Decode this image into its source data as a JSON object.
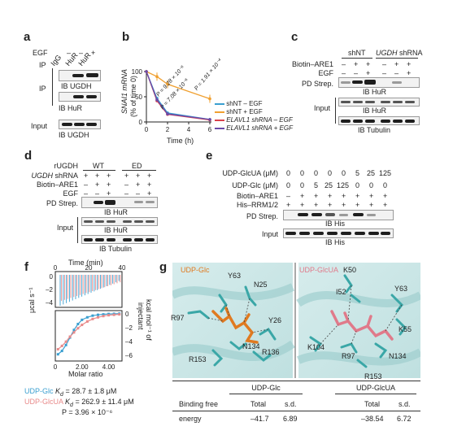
{
  "panels": {
    "a": {
      "label": "a",
      "egf_row": {
        "label": "EGF",
        "values": [
          "–",
          "–",
          "+"
        ]
      },
      "ip_row": {
        "label": "IP",
        "values": [
          "IgG",
          "HuR",
          "HuR"
        ]
      },
      "ip_blot1": "IB UGDH",
      "ip_blot2": "IB HuR",
      "ip_side": "IP",
      "input_label": "Input",
      "input_blot": "IB UGDH"
    },
    "b": {
      "label": "b",
      "ylabel_line1": "SNAI1 mRNA",
      "ylabel_line2": "(% of time 0)",
      "xlabel": "Time (h)",
      "p1": "P = 9.28 × 10⁻⁶",
      "p2": "P = 7.08 × 10⁻⁶",
      "p3": "P = 1.91 × 10⁻⁴"
    },
    "c": {
      "label": "c",
      "shNT": "shNT",
      "ugdh_sh": "UGDH",
      "shRNA": " shRNA",
      "biotin_row": {
        "label": "Biotin–ARE1",
        "values": [
          "–",
          "+",
          "+",
          "–",
          "+",
          "+"
        ]
      },
      "egf_row": {
        "label": "EGF",
        "values": [
          "–",
          "–",
          "+",
          "–",
          "–",
          "+"
        ]
      },
      "pd_label": "PD Strep.",
      "ib1": "IB HuR",
      "input_label": "Input",
      "ib2": "IB HuR",
      "ib3": "IB Tubulin"
    },
    "d": {
      "label": "d",
      "rugdh_label": "rUGDH",
      "wt": "WT",
      "ed": "ED",
      "shrna_row": {
        "label_it": "UGDH",
        "label": " shRNA",
        "values": [
          "+",
          "+",
          "+",
          "+",
          "+",
          "+"
        ]
      },
      "biotin_row": {
        "label": "Biotin–ARE1",
        "values": [
          "–",
          "+",
          "+",
          "–",
          "+",
          "+"
        ]
      },
      "egf_row": {
        "label": "EGF",
        "values": [
          "–",
          "–",
          "+",
          "–",
          "–",
          "+"
        ]
      },
      "pd_label": "PD Strep.",
      "ib1": "IB HuR",
      "input_label": "Input",
      "ib2": "IB HuR",
      "ib3": "IB Tubulin"
    },
    "e": {
      "label": "e",
      "glcua_row": {
        "label": "UDP-GlcUA (μM)",
        "values": [
          "0",
          "0",
          "0",
          "0",
          "0",
          "5",
          "25",
          "125"
        ]
      },
      "glc_row": {
        "label": "UDP-Glc (μM)",
        "values": [
          "0",
          "0",
          "5",
          "25",
          "125",
          "0",
          "0",
          "0"
        ]
      },
      "biotin_row": {
        "label": "Biotin–ARE1",
        "values": [
          "–",
          "+",
          "+",
          "+",
          "+",
          "+",
          "+",
          "+"
        ]
      },
      "his_row": {
        "label": "His–RRM1/2",
        "values": [
          "+",
          "+",
          "+",
          "+",
          "+",
          "+",
          "+",
          "+"
        ]
      },
      "pd_label": "PD Strep.",
      "ib1": "IB His",
      "input_label": "Input",
      "ib2": "IB His"
    },
    "f": {
      "label": "f",
      "top_xlabel": "Time (min)",
      "top_ticks": [
        "0",
        "20",
        "40"
      ],
      "left_ylabel": "μcal s⁻¹",
      "left_ticks": [
        "0",
        "–2",
        "–4"
      ],
      "right_ylabel_line1": "kcal mol⁻¹ of",
      "right_ylabel_line2": "injectant",
      "right_ticks": [
        "0",
        "–2",
        "–4",
        "–6"
      ],
      "bottom_ticks": [
        "0",
        "2.00",
        "4.00"
      ],
      "xlabel": "Molar ratio",
      "legend1_name": "UDP-Glc",
      "legend1_rest": " = 28.7 ± 1.8 μM",
      "legend2_name": "UDP-GlcUA",
      "legend2_rest": " = 262.9 ± 11.4 μM",
      "kd": "K",
      "kd_sub": "d",
      "pval": "P = 3.96 × 10⁻⁶"
    },
    "g": {
      "label": "g",
      "left_title": "UDP-Glc",
      "right_title": "UDP-GlcUA",
      "left_residues": [
        "Y63",
        "N25",
        "R97",
        "Y26",
        "N134",
        "R153",
        "R136"
      ],
      "right_residues": [
        "K50",
        "I52",
        "Y63",
        "K55",
        "K104",
        "R97",
        "N134",
        "R153"
      ],
      "table": {
        "col_glc": "UDP-Glc",
        "col_glcua": "UDP-GlcUA",
        "row_label_1": "Binding free",
        "row_label_2": "energy",
        "total": "Total",
        "sd": "s.d.",
        "glc_total": "–41.7",
        "glc_sd": "6.89",
        "glcua_total": "–38.54",
        "glcua_sd": "6.72"
      }
    }
  },
  "chart_data": [
    {
      "type": "line",
      "panel": "b",
      "x": [
        0,
        1,
        2,
        6
      ],
      "series": [
        {
          "name": "shNT – EGF",
          "values": [
            100,
            47,
            18,
            5
          ],
          "color": "#3a9fd0"
        },
        {
          "name": "shNT + EGF",
          "values": [
            100,
            90,
            75,
            46
          ],
          "color": "#f0a030"
        },
        {
          "name": "ELAVL1 shRNA – EGF",
          "values": [
            100,
            42,
            15,
            4
          ],
          "color": "#d8404a"
        },
        {
          "name": "ELAVL1 shRNA + EGF",
          "values": [
            100,
            44,
            16,
            5
          ],
          "color": "#6a4aa8"
        }
      ],
      "xlabel": "Time (h)",
      "ylabel": "SNAI1 mRNA (% of time 0)",
      "xticks": [
        0,
        2,
        4,
        6
      ],
      "yticks": [
        0,
        50,
        100
      ],
      "xlim": [
        0,
        6
      ],
      "ylim": [
        0,
        100
      ]
    },
    {
      "type": "scatter",
      "panel": "f",
      "x": [
        0.2,
        0.5,
        0.8,
        1.1,
        1.4,
        1.7,
        2.0,
        2.4,
        2.8,
        3.2,
        3.6,
        4.0,
        4.4,
        4.8
      ],
      "series": [
        {
          "name": "UDP-Glc",
          "values": [
            -5.2,
            -4.8,
            -4.1,
            -3.2,
            -2.3,
            -1.6,
            -1.1,
            -0.8,
            -0.6,
            -0.5,
            -0.45,
            -0.4,
            -0.38,
            -0.36
          ],
          "color": "#3a9fd0"
        },
        {
          "name": "UDP-GlcUA",
          "values": [
            -4.6,
            -4.2,
            -3.7,
            -3.1,
            -2.6,
            -2.1,
            -1.7,
            -1.3,
            -1.0,
            -0.8,
            -0.65,
            -0.55,
            -0.5,
            -0.45
          ],
          "color": "#e88a8a"
        }
      ],
      "xlabel": "Molar ratio",
      "ylabel": "kcal mol⁻¹ of injectant",
      "xlim": [
        0,
        5
      ],
      "ylim": [
        -6,
        0
      ]
    }
  ]
}
